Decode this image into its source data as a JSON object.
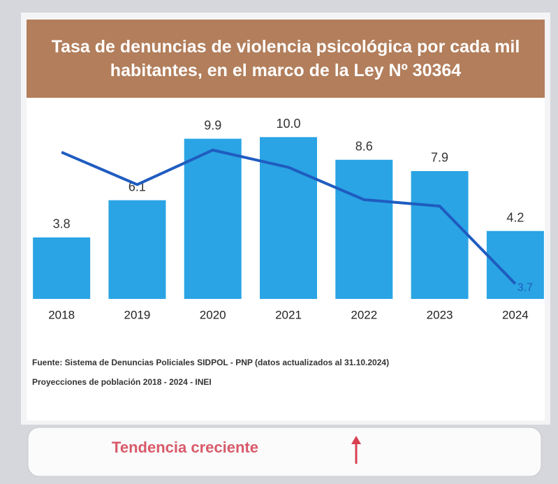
{
  "chart_data": {
    "type": "bar",
    "title": "Tasa de denuncias de violencia psicológica por cada mil habitantes, en el marco de la Ley Nº 30364",
    "categories": [
      "2018",
      "2019",
      "2020",
      "2021",
      "2022",
      "2023",
      "2024"
    ],
    "series": [
      {
        "name": "Tasa",
        "type": "bar",
        "color": "#2aa4e4",
        "values": [
          3.8,
          6.1,
          9.9,
          10.0,
          8.6,
          7.9,
          4.2
        ],
        "value_labels": [
          "3.8",
          "6.1",
          "9.9",
          "10.0",
          "8.6",
          "7.9",
          "4.2"
        ]
      },
      {
        "name": "Tendencia",
        "type": "line",
        "axis": "y2",
        "color": "#1f5cc0",
        "values": [
          9.8,
          8.3,
          9.9,
          9.1,
          7.6,
          7.3,
          3.7
        ],
        "value_labels": [
          null,
          null,
          null,
          null,
          null,
          null,
          "3.7"
        ]
      }
    ],
    "ylim": [
      0,
      12
    ],
    "y2lim": [
      3,
      12
    ],
    "source": "Fuente: Sistema de Denuncias Policiales SIDPOL - PNP (datos actualizados al 31.10.2024)",
    "note": "Proyecciones de población 2018 - 2024 - INEI",
    "annotation": "Tendencia creciente"
  }
}
